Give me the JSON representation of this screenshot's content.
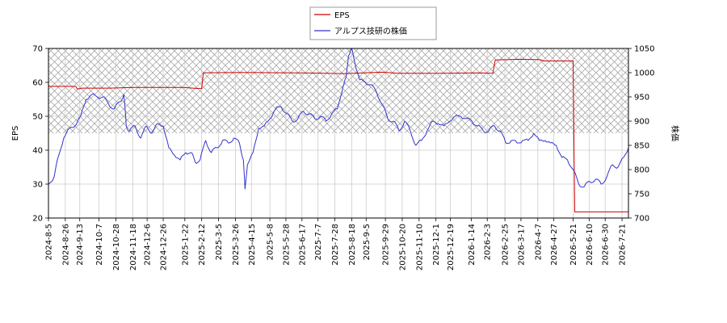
{
  "chart_data": {
    "type": "line",
    "legend": {
      "placement": "top-center",
      "entries": [
        {
          "label": "EPS",
          "color": "#cc0000"
        },
        {
          "label": "アルプス技研の株価",
          "color": "#3333cc"
        }
      ]
    },
    "ylabel_left": "EPS",
    "ylabel_right": "株価",
    "ylim_left": [
      20,
      70
    ],
    "ylim_right": [
      700,
      1050
    ],
    "yticks_left": [
      "20",
      "30",
      "40",
      "50",
      "60",
      "70"
    ],
    "yticks_right": [
      "700",
      "750",
      "800",
      "850",
      "900",
      "950",
      "1000",
      "1050"
    ],
    "xlim": [
      "2024-08-05",
      "2026-07-29"
    ],
    "x_tick_labels": [
      "2024-8-5",
      "2024-8-26",
      "2024-9-13",
      "2024-10-7",
      "2024-10-28",
      "2024-11-18",
      "2024-12-6",
      "2024-12-26",
      "2025-1-22",
      "2025-2-12",
      "2025-3-5",
      "2025-3-26",
      "2025-4-15",
      "2025-5-8",
      "2025-5-28",
      "2025-6-17",
      "2025-7-7",
      "2025-7-28",
      "2025-8-18",
      "2025-9-5",
      "2025-9-29",
      "2025-10-20",
      "2025-11-10",
      "2025-12-1",
      "2025-12-19",
      "2026-1-14",
      "2026-2-3",
      "2026-2-25",
      "2026-3-17",
      "2026-4-7",
      "2026-4-27",
      "2026-5-21",
      "2026-6-10",
      "2026-6-30",
      "2026-7-21"
    ],
    "grid": true,
    "hatched_band_left_axis": [
      45,
      70
    ],
    "series": [
      {
        "name": "EPS",
        "axis": "left",
        "color": "#cc0000",
        "points": [
          [
            "2024-08-05",
            58.8
          ],
          [
            "2024-09-08",
            58.8
          ],
          [
            "2024-09-10",
            58.0
          ],
          [
            "2024-09-16",
            58.3
          ],
          [
            "2024-10-20",
            58.3
          ],
          [
            "2024-11-20",
            58.5
          ],
          [
            "2025-01-20",
            58.5
          ],
          [
            "2025-02-08",
            58.2
          ],
          [
            "2025-02-12",
            58.2
          ],
          [
            "2025-02-14",
            62.8
          ],
          [
            "2025-04-05",
            62.9
          ],
          [
            "2025-06-10",
            62.8
          ],
          [
            "2025-08-10",
            62.6
          ],
          [
            "2025-09-25",
            63.0
          ],
          [
            "2025-10-15",
            62.7
          ],
          [
            "2025-12-01",
            62.7
          ],
          [
            "2026-01-25",
            62.8
          ],
          [
            "2026-02-10",
            62.7
          ],
          [
            "2026-02-13",
            66.6
          ],
          [
            "2026-03-15",
            66.8
          ],
          [
            "2026-04-10",
            66.7
          ],
          [
            "2026-04-14",
            66.3
          ],
          [
            "2026-05-19",
            66.3
          ],
          [
            "2026-05-21",
            66.3
          ],
          [
            "2026-05-23",
            21.8
          ],
          [
            "2026-07-29",
            21.8
          ]
        ]
      },
      {
        "name": "アルプス技研の株価",
        "axis": "right",
        "color": "#3333cc",
        "points": [
          [
            "2024-08-05",
            770
          ],
          [
            "2024-08-12",
            785
          ],
          [
            "2024-08-17",
            825
          ],
          [
            "2024-08-24",
            865
          ],
          [
            "2024-08-31",
            885
          ],
          [
            "2024-09-07",
            890
          ],
          [
            "2024-09-14",
            910
          ],
          [
            "2024-09-21",
            945
          ],
          [
            "2024-09-28",
            955
          ],
          [
            "2024-10-05",
            950
          ],
          [
            "2024-10-12",
            950
          ],
          [
            "2024-10-19",
            935
          ],
          [
            "2024-10-26",
            925
          ],
          [
            "2024-11-02",
            940
          ],
          [
            "2024-11-07",
            955
          ],
          [
            "2024-11-10",
            890
          ],
          [
            "2024-11-14",
            880
          ],
          [
            "2024-11-21",
            890
          ],
          [
            "2024-11-28",
            865
          ],
          [
            "2024-12-05",
            890
          ],
          [
            "2024-12-12",
            875
          ],
          [
            "2024-12-19",
            895
          ],
          [
            "2024-12-26",
            890
          ],
          [
            "2025-01-02",
            845
          ],
          [
            "2025-01-09",
            830
          ],
          [
            "2025-01-16",
            820
          ],
          [
            "2025-01-23",
            835
          ],
          [
            "2025-01-30",
            835
          ],
          [
            "2025-02-04",
            815
          ],
          [
            "2025-02-10",
            820
          ],
          [
            "2025-02-17",
            860
          ],
          [
            "2025-02-24",
            835
          ],
          [
            "2025-03-03",
            845
          ],
          [
            "2025-03-10",
            860
          ],
          [
            "2025-03-17",
            855
          ],
          [
            "2025-03-24",
            865
          ],
          [
            "2025-03-31",
            855
          ],
          [
            "2025-04-05",
            820
          ],
          [
            "2025-04-07",
            760
          ],
          [
            "2025-04-10",
            810
          ],
          [
            "2025-04-17",
            835
          ],
          [
            "2025-04-24",
            885
          ],
          [
            "2025-05-01",
            890
          ],
          [
            "2025-05-08",
            905
          ],
          [
            "2025-05-15",
            925
          ],
          [
            "2025-05-22",
            930
          ],
          [
            "2025-05-29",
            915
          ],
          [
            "2025-06-05",
            900
          ],
          [
            "2025-06-12",
            905
          ],
          [
            "2025-06-19",
            920
          ],
          [
            "2025-06-26",
            915
          ],
          [
            "2025-07-03",
            905
          ],
          [
            "2025-07-10",
            910
          ],
          [
            "2025-07-17",
            900
          ],
          [
            "2025-07-24",
            915
          ],
          [
            "2025-07-31",
            925
          ],
          [
            "2025-08-07",
            970
          ],
          [
            "2025-08-11",
            990
          ],
          [
            "2025-08-14",
            1035
          ],
          [
            "2025-08-18",
            1050
          ],
          [
            "2025-08-22",
            1020
          ],
          [
            "2025-08-28",
            985
          ],
          [
            "2025-09-04",
            980
          ],
          [
            "2025-09-11",
            975
          ],
          [
            "2025-09-18",
            960
          ],
          [
            "2025-09-25",
            935
          ],
          [
            "2025-10-02",
            905
          ],
          [
            "2025-10-09",
            900
          ],
          [
            "2025-10-16",
            880
          ],
          [
            "2025-10-23",
            900
          ],
          [
            "2025-10-30",
            880
          ],
          [
            "2025-11-06",
            850
          ],
          [
            "2025-11-13",
            860
          ],
          [
            "2025-11-20",
            880
          ],
          [
            "2025-11-27",
            900
          ],
          [
            "2025-12-04",
            895
          ],
          [
            "2025-12-11",
            890
          ],
          [
            "2025-12-18",
            900
          ],
          [
            "2025-12-25",
            910
          ],
          [
            "2026-01-01",
            910
          ],
          [
            "2026-01-08",
            905
          ],
          [
            "2026-01-15",
            900
          ],
          [
            "2026-01-22",
            890
          ],
          [
            "2026-01-29",
            880
          ],
          [
            "2026-02-05",
            880
          ],
          [
            "2026-02-12",
            890
          ],
          [
            "2026-02-19",
            880
          ],
          [
            "2026-02-26",
            855
          ],
          [
            "2026-03-05",
            860
          ],
          [
            "2026-03-12",
            855
          ],
          [
            "2026-03-19",
            860
          ],
          [
            "2026-03-26",
            860
          ],
          [
            "2026-04-02",
            875
          ],
          [
            "2026-04-09",
            860
          ],
          [
            "2026-04-16",
            860
          ],
          [
            "2026-04-23",
            855
          ],
          [
            "2026-04-30",
            850
          ],
          [
            "2026-05-07",
            825
          ],
          [
            "2026-05-14",
            820
          ],
          [
            "2026-05-21",
            800
          ],
          [
            "2026-05-28",
            770
          ],
          [
            "2026-06-04",
            765
          ],
          [
            "2026-06-11",
            775
          ],
          [
            "2026-06-18",
            780
          ],
          [
            "2026-06-25",
            770
          ],
          [
            "2026-07-02",
            785
          ],
          [
            "2026-07-09",
            810
          ],
          [
            "2026-07-16",
            805
          ],
          [
            "2026-07-23",
            825
          ],
          [
            "2026-07-29",
            845
          ]
        ]
      }
    ]
  }
}
